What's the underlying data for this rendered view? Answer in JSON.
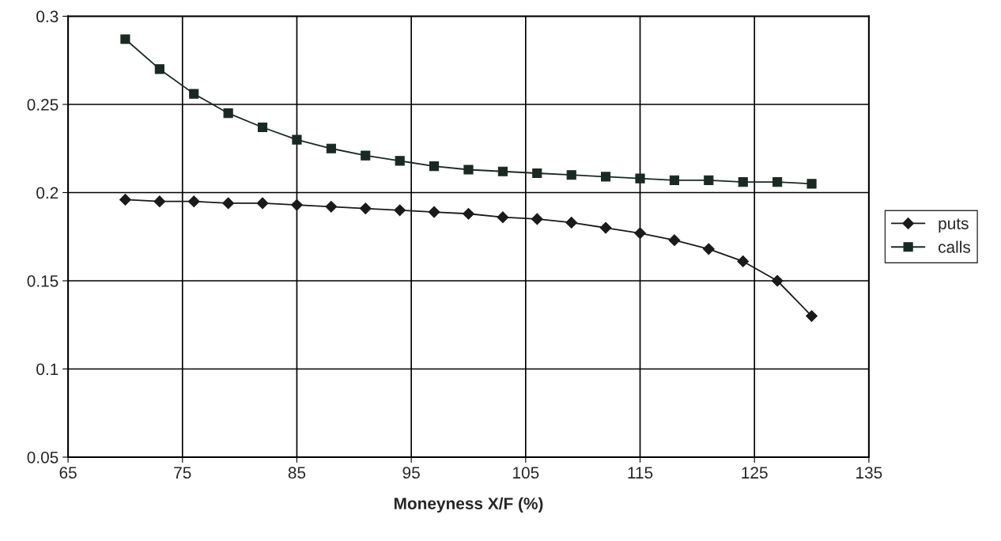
{
  "chart_data": {
    "type": "line",
    "xlabel": "Moneyness X/F (%)",
    "x": [
      70,
      73,
      76,
      79,
      82,
      85,
      88,
      91,
      94,
      97,
      100,
      103,
      106,
      109,
      112,
      115,
      118,
      121,
      124,
      127,
      130
    ],
    "series": [
      {
        "name": "puts",
        "color": "#1a1a1a",
        "marker": "diamond",
        "values": [
          0.196,
          0.195,
          0.195,
          0.194,
          0.194,
          0.193,
          0.192,
          0.191,
          0.19,
          0.189,
          0.188,
          0.186,
          0.185,
          0.183,
          0.18,
          0.177,
          0.173,
          0.168,
          0.161,
          0.15,
          0.13
        ]
      },
      {
        "name": "calls",
        "color": "#1a2a22",
        "marker": "square",
        "values": [
          0.287,
          0.27,
          0.256,
          0.245,
          0.237,
          0.23,
          0.225,
          0.221,
          0.218,
          0.215,
          0.213,
          0.212,
          0.211,
          0.21,
          0.209,
          0.208,
          0.207,
          0.207,
          0.206,
          0.206,
          0.205
        ]
      }
    ],
    "xlim": [
      65,
      135
    ],
    "xticks": [
      65,
      75,
      85,
      95,
      105,
      115,
      125,
      135
    ],
    "ylim": [
      0.05,
      0.3
    ],
    "yticks": [
      0.05,
      0.1,
      0.15,
      0.2,
      0.25,
      0.3
    ],
    "grid": true,
    "legend": "right",
    "line_style": "solid"
  }
}
